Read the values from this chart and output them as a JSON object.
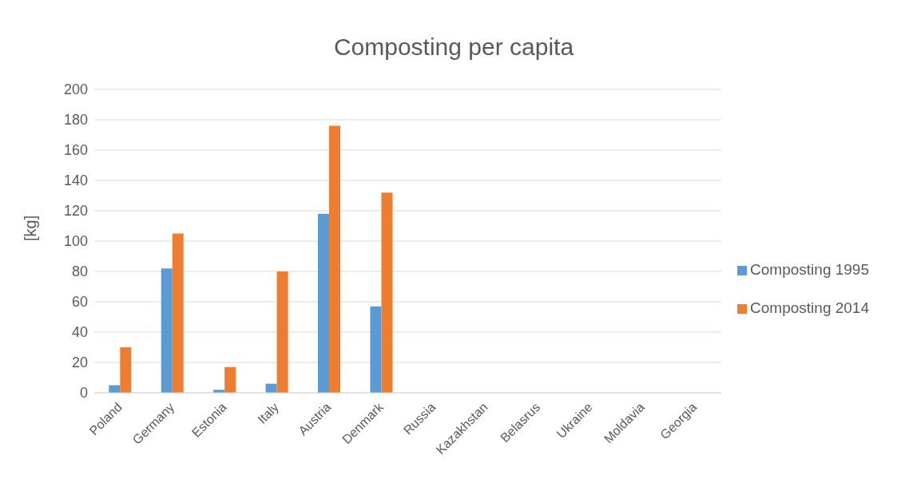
{
  "chart_data": {
    "type": "bar",
    "title": "Composting per capita",
    "ylabel": "[kg]",
    "categories": [
      "Poland",
      "Germany",
      "Estonia",
      "Italy",
      "Austria",
      "Denmark",
      "Russia",
      "Kazakhstan",
      "Belasrus",
      "Ukraine",
      "Moldavia",
      "Georgia"
    ],
    "series": [
      {
        "name": "Composting 1995",
        "color": "#5b9bd5",
        "values": [
          5,
          82,
          2,
          6,
          118,
          57,
          null,
          null,
          null,
          null,
          null,
          null
        ]
      },
      {
        "name": "Composting 2014",
        "color": "#ed7d31",
        "values": [
          30,
          105,
          17,
          80,
          176,
          132,
          null,
          null,
          null,
          null,
          null,
          null
        ]
      }
    ],
    "ylim": [
      0,
      200
    ],
    "yticks": [
      0,
      20,
      40,
      60,
      80,
      100,
      120,
      140,
      160,
      180,
      200
    ],
    "grid": "y",
    "legend": "right"
  }
}
